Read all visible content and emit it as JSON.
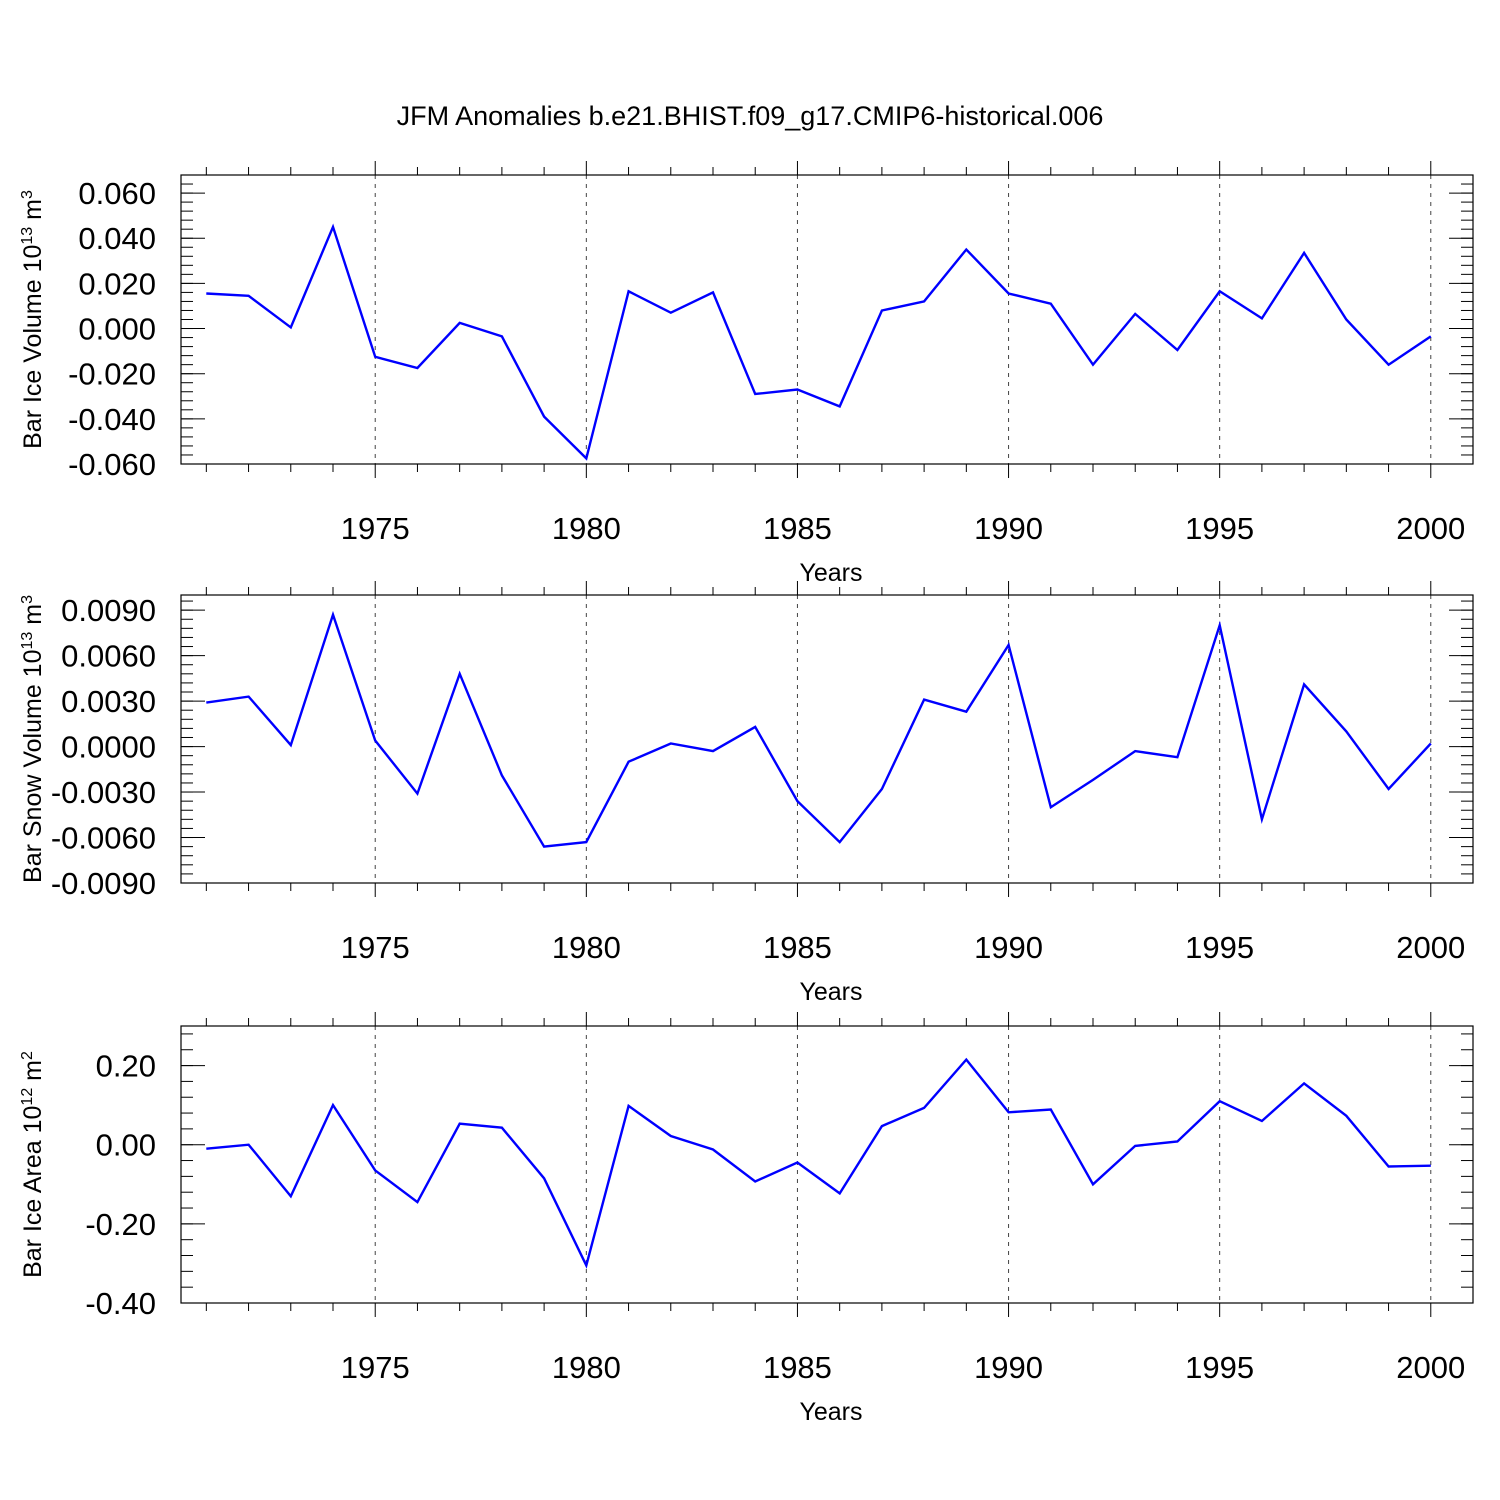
{
  "title": "JFM Anomalies b.e21.BHIST.f09_g17.CMIP6-historical.006",
  "line_color": "#0000ff",
  "chart_data": [
    {
      "type": "line",
      "ylabel": "Bar Ice Volume 10",
      "ylabel_exp": "13",
      "ylabel_unit": "m",
      "ylabel_unit_exp": "3",
      "xlabel": "Years",
      "xlim": [
        1970.4,
        2001
      ],
      "ylim": [
        -0.06,
        0.068
      ],
      "yticks": [
        "0.060",
        "0.040",
        "0.020",
        "0.000",
        "-0.020",
        "-0.040",
        "-0.060"
      ],
      "xticks": [
        "1975",
        "1980",
        "1985",
        "1990",
        "1995",
        "2000"
      ],
      "x": [
        1971,
        1972,
        1973,
        1974,
        1975,
        1976,
        1977,
        1978,
        1979,
        1980,
        1981,
        1982,
        1983,
        1984,
        1985,
        1986,
        1987,
        1988,
        1989,
        1990,
        1991,
        1992,
        1993,
        1994,
        1995,
        1996,
        1997,
        1998,
        1999,
        2000
      ],
      "values": [
        0.0155,
        0.0145,
        0.0005,
        0.045,
        -0.0125,
        -0.0175,
        0.0025,
        -0.0035,
        -0.039,
        -0.0575,
        0.0165,
        0.007,
        0.016,
        -0.029,
        -0.027,
        -0.0345,
        0.008,
        0.012,
        0.035,
        0.0155,
        0.011,
        -0.016,
        0.0065,
        -0.0095,
        0.0165,
        0.0045,
        0.0335,
        0.004,
        -0.016,
        -0.0035
      ]
    },
    {
      "type": "line",
      "ylabel": "Bar Snow Volume 10",
      "ylabel_exp": "13",
      "ylabel_unit": "m",
      "ylabel_unit_exp": "3",
      "xlabel": "Years",
      "xlim": [
        1970.4,
        2001
      ],
      "ylim": [
        -0.009,
        0.01
      ],
      "yticks": [
        "0.0090",
        "0.0060",
        "0.0030",
        "0.0000",
        "-0.0030",
        "-0.0060",
        "-0.0090"
      ],
      "xticks": [
        "1975",
        "1980",
        "1985",
        "1990",
        "1995",
        "2000"
      ],
      "x": [
        1971,
        1972,
        1973,
        1974,
        1975,
        1976,
        1977,
        1978,
        1979,
        1980,
        1981,
        1982,
        1983,
        1984,
        1985,
        1986,
        1987,
        1988,
        1989,
        1990,
        1991,
        1992,
        1993,
        1994,
        1995,
        1996,
        1997,
        1998,
        1999,
        2000
      ],
      "values": [
        0.0029,
        0.0033,
        0.0001,
        0.0087,
        0.0004,
        -0.0031,
        0.0048,
        -0.0019,
        -0.0066,
        -0.0063,
        -0.001,
        0.0002,
        -0.0003,
        0.0013,
        -0.0036,
        -0.0063,
        -0.0028,
        0.0031,
        0.0023,
        0.0067,
        -0.004,
        -0.0022,
        -0.0003,
        -0.0007,
        0.008,
        -0.0048,
        0.0041,
        0.001,
        -0.0028,
        0.0002
      ]
    },
    {
      "type": "line",
      "ylabel": "Bar Ice Area 10",
      "ylabel_exp": "12",
      "ylabel_unit": "m",
      "ylabel_unit_exp": "2",
      "xlabel": "Years",
      "xlim": [
        1970.4,
        2001
      ],
      "ylim": [
        -0.4,
        0.3
      ],
      "yticks": [
        "0.20",
        "0.00",
        "-0.20",
        "-0.40"
      ],
      "xticks": [
        "1975",
        "1980",
        "1985",
        "1990",
        "1995",
        "2000"
      ],
      "x": [
        1971,
        1972,
        1973,
        1974,
        1975,
        1976,
        1977,
        1978,
        1979,
        1980,
        1981,
        1982,
        1983,
        1984,
        1985,
        1986,
        1987,
        1988,
        1989,
        1990,
        1991,
        1992,
        1993,
        1994,
        1995,
        1996,
        1997,
        1998,
        1999,
        2000
      ],
      "values": [
        -0.01,
        0.0,
        -0.13,
        0.1,
        -0.065,
        -0.145,
        0.053,
        0.043,
        -0.085,
        -0.305,
        0.098,
        0.022,
        -0.012,
        -0.093,
        -0.045,
        -0.123,
        0.047,
        0.093,
        0.215,
        0.082,
        0.089,
        -0.1,
        -0.003,
        0.008,
        0.11,
        0.06,
        0.155,
        0.073,
        -0.055,
        -0.053
      ]
    }
  ]
}
